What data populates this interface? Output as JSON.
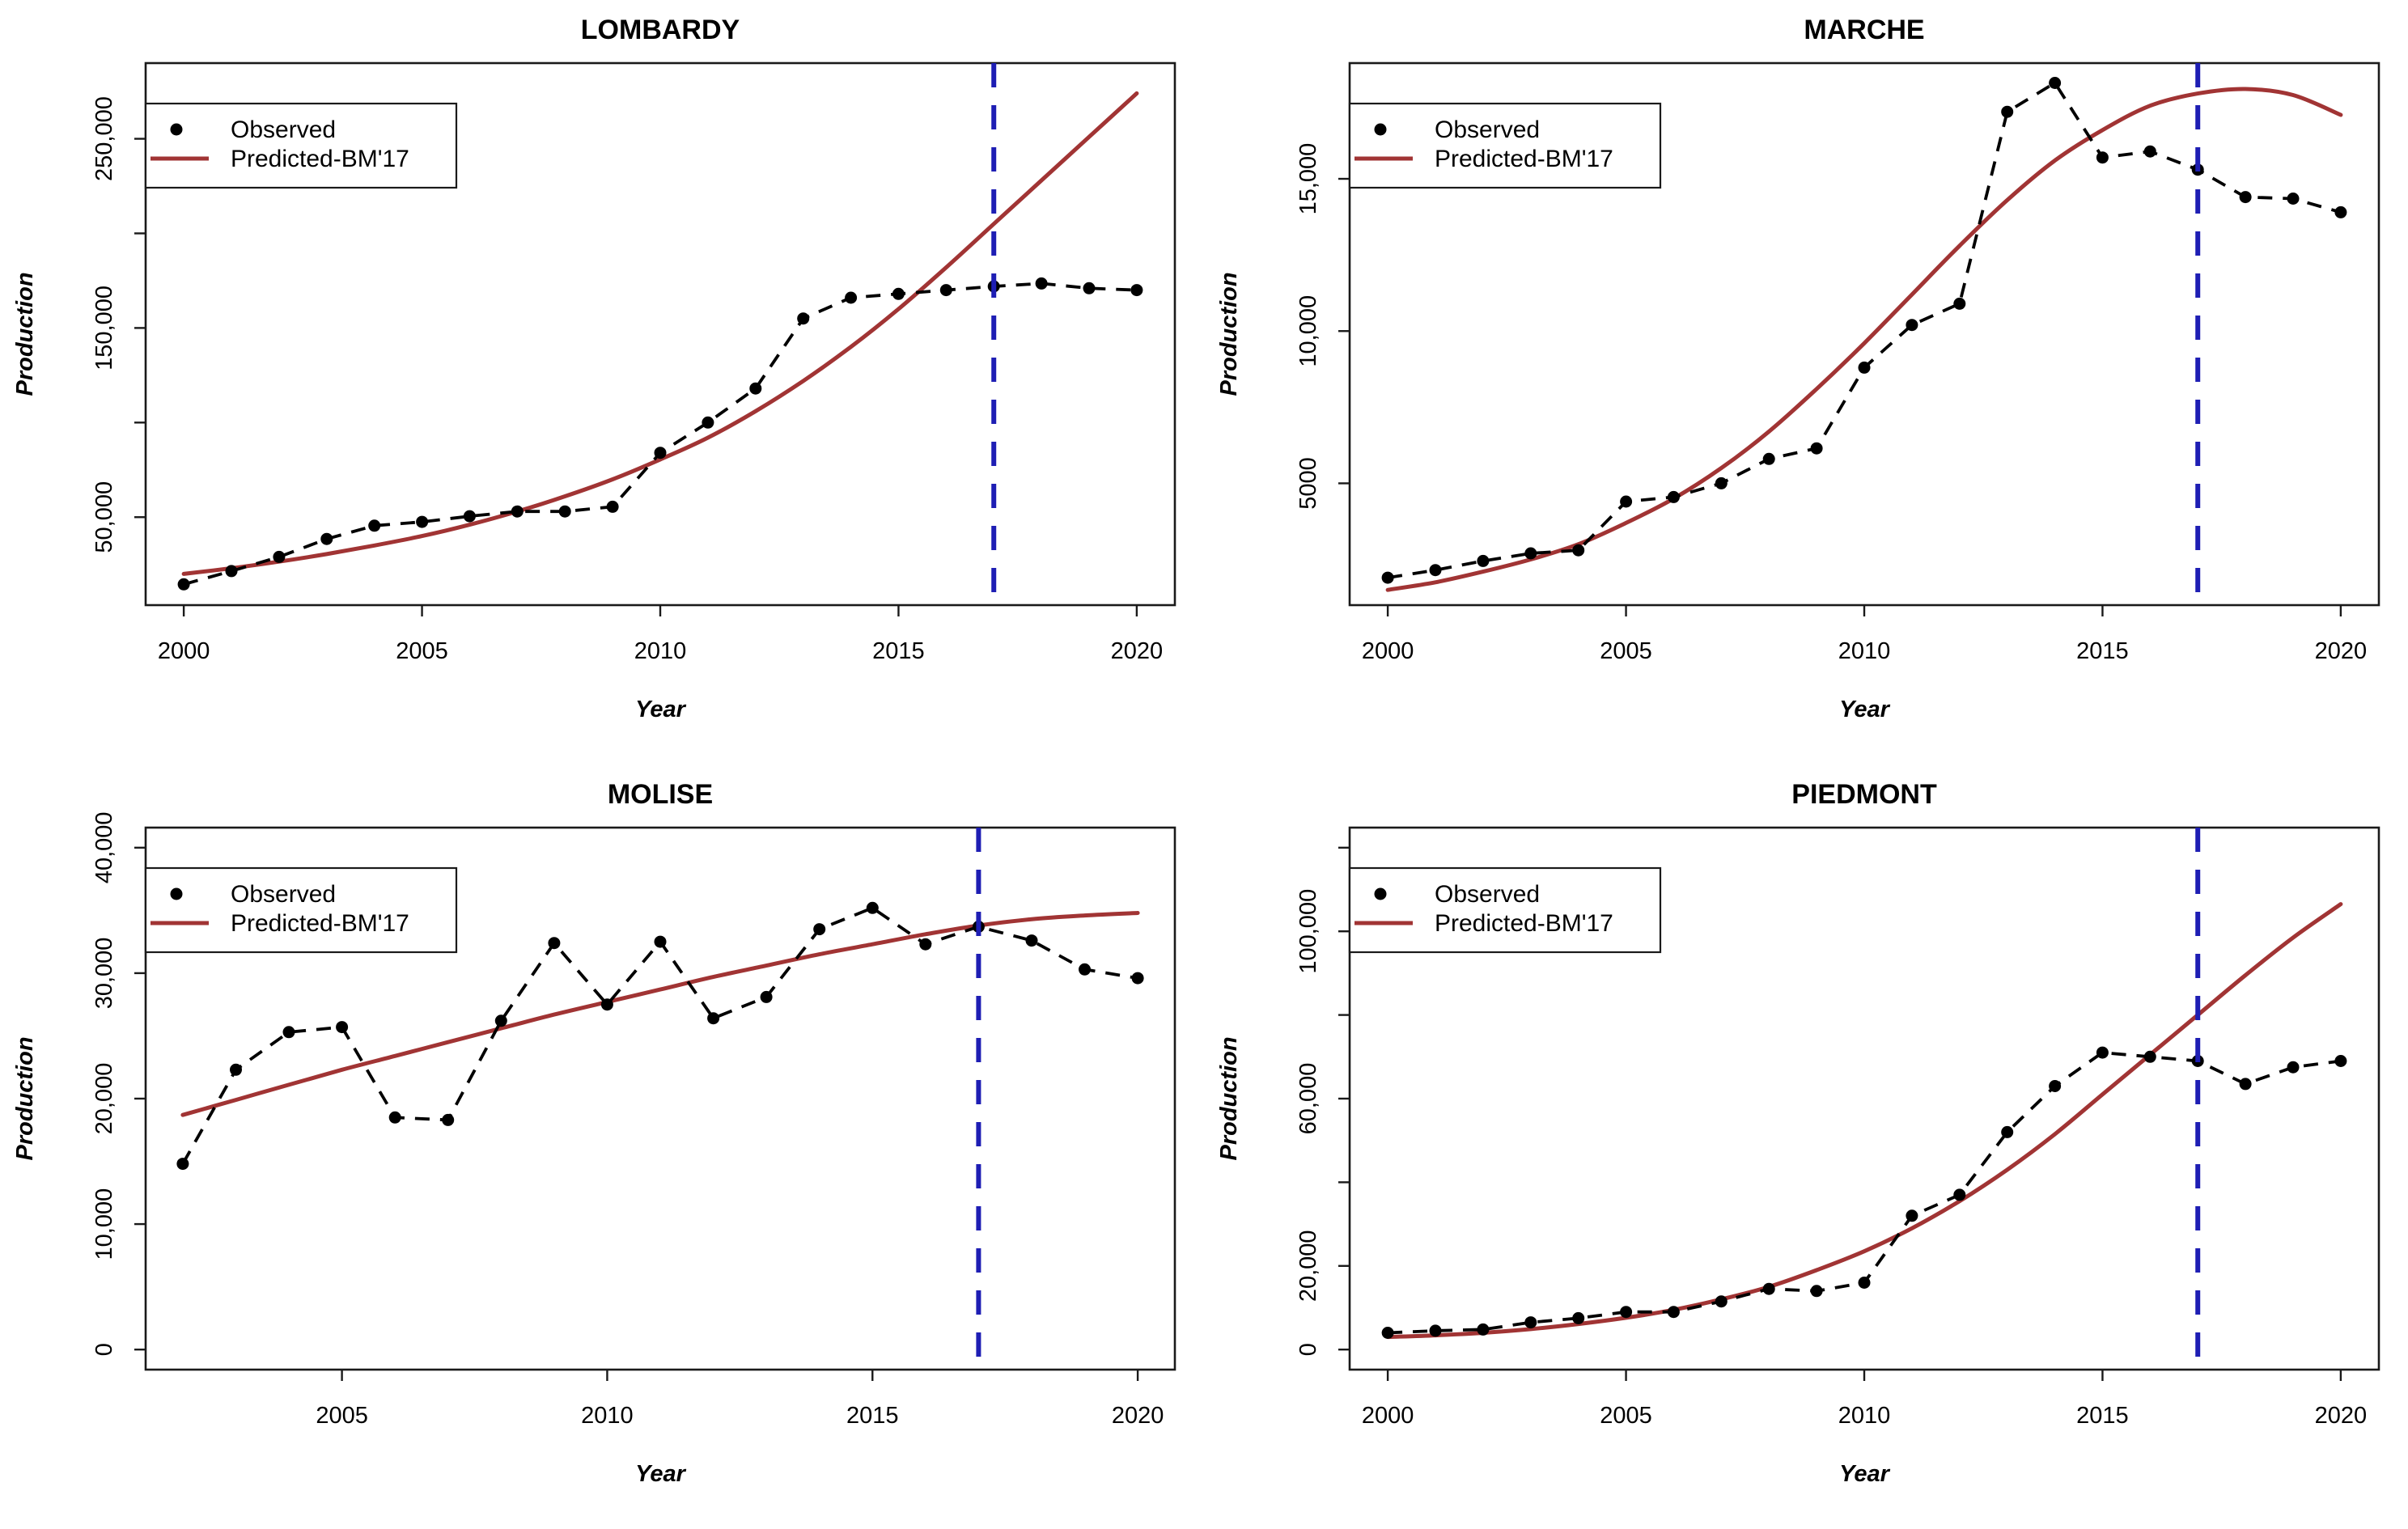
{
  "page": {
    "background": "#ffffff"
  },
  "legend": {
    "observed_label": "Observed",
    "predicted_label": "Predicted-BM'17"
  },
  "colors": {
    "observed": "#000000",
    "predicted": "#A13434",
    "vline": "#1E1EB4",
    "axis": "#1A1A1A",
    "background": "#ffffff"
  },
  "chart_data": [
    {
      "type": "line",
      "title": "LOMBARDY",
      "xlabel": "Year",
      "ylabel": "Production",
      "x": [
        2000,
        2001,
        2002,
        2003,
        2004,
        2005,
        2006,
        2007,
        2008,
        2009,
        2010,
        2011,
        2012,
        2013,
        2014,
        2015,
        2016,
        2017,
        2018,
        2019,
        2020
      ],
      "series": [
        {
          "name": "Observed",
          "style": "points-dashed",
          "values": [
            14500,
            21500,
            29000,
            38500,
            45500,
            47500,
            50500,
            53000,
            53000,
            55500,
            84000,
            100000,
            118000,
            155000,
            166000,
            168000,
            170000,
            172000,
            173500,
            171000,
            170000
          ]
        },
        {
          "name": "Predicted-BM'17",
          "style": "solid-curve",
          "values": [
            20000,
            23000,
            26500,
            30500,
            35000,
            40000,
            46000,
            53000,
            61000,
            70000,
            80500,
            92000,
            106000,
            122000,
            140000,
            160000,
            182000,
            205000,
            228000,
            251000,
            274000
          ]
        }
      ],
      "vline_x": 2017,
      "xlim": [
        1999.2,
        2020.8
      ],
      "ylim": [
        3500,
        290000
      ],
      "xticks": [
        2000,
        2005,
        2010,
        2015,
        2020
      ],
      "yticks": [
        {
          "v": 50000,
          "label": "50,000"
        },
        {
          "v": 100000,
          "label": ""
        },
        {
          "v": 150000,
          "label": "150,000"
        },
        {
          "v": 200000,
          "label": ""
        },
        {
          "v": 250000,
          "label": "250,000"
        }
      ],
      "grid": false,
      "legend_position": "topleft"
    },
    {
      "type": "line",
      "title": "MARCHE",
      "xlabel": "Year",
      "ylabel": "Production",
      "x": [
        2000,
        2001,
        2002,
        2003,
        2004,
        2005,
        2006,
        2007,
        2008,
        2009,
        2010,
        2011,
        2012,
        2013,
        2014,
        2015,
        2016,
        2017,
        2018,
        2019,
        2020
      ],
      "series": [
        {
          "name": "Observed",
          "style": "points-dashed",
          "values": [
            1900,
            2150,
            2450,
            2700,
            2800,
            4400,
            4550,
            5000,
            5800,
            6150,
            8800,
            10200,
            10900,
            17200,
            18150,
            15700,
            15900,
            15300,
            14400,
            14350,
            13900
          ]
        },
        {
          "name": "Predicted-BM'17",
          "style": "solid-curve",
          "values": [
            1500,
            1750,
            2100,
            2500,
            3000,
            3700,
            4500,
            5500,
            6700,
            8100,
            9600,
            11200,
            12800,
            14300,
            15600,
            16600,
            17400,
            17800,
            17950,
            17750,
            17100
          ]
        }
      ],
      "vline_x": 2017,
      "xlim": [
        1999.2,
        2020.8
      ],
      "ylim": [
        1000,
        18800
      ],
      "xticks": [
        2000,
        2005,
        2010,
        2015,
        2020
      ],
      "yticks": [
        {
          "v": 5000,
          "label": "5000"
        },
        {
          "v": 10000,
          "label": "10,000"
        },
        {
          "v": 15000,
          "label": "15,000"
        }
      ],
      "grid": false,
      "legend_position": "topleft"
    },
    {
      "type": "line",
      "title": "MOLISE",
      "xlabel": "Year",
      "ylabel": "Production",
      "x": [
        2002,
        2003,
        2004,
        2005,
        2006,
        2007,
        2008,
        2009,
        2010,
        2011,
        2012,
        2013,
        2014,
        2015,
        2016,
        2017,
        2018,
        2019,
        2020
      ],
      "series": [
        {
          "name": "Observed",
          "style": "points-dashed",
          "values": [
            14800,
            22300,
            25300,
            25700,
            18500,
            18300,
            26200,
            32400,
            27500,
            32500,
            26400,
            28100,
            33500,
            35200,
            32300,
            33700,
            32600,
            30300,
            29600
          ]
        },
        {
          "name": "Predicted-BM'17",
          "style": "solid-curve",
          "values": [
            18700,
            19900,
            21100,
            22300,
            23400,
            24500,
            25600,
            26700,
            27700,
            28700,
            29700,
            30600,
            31500,
            32300,
            33100,
            33800,
            34300,
            34600,
            34800
          ]
        }
      ],
      "vline_x": 2017,
      "xlim": [
        2001.3,
        2020.7
      ],
      "ylim": [
        -1600,
        41600
      ],
      "xticks": [
        2005,
        2010,
        2015,
        2020
      ],
      "yticks": [
        {
          "v": 0,
          "label": "0"
        },
        {
          "v": 10000,
          "label": "10,000"
        },
        {
          "v": 20000,
          "label": "20,000"
        },
        {
          "v": 30000,
          "label": "30,000"
        },
        {
          "v": 40000,
          "label": "40,000"
        }
      ],
      "grid": false,
      "legend_position": "topleft"
    },
    {
      "type": "line",
      "title": "PIEDMONT",
      "xlabel": "Year",
      "ylabel": "Production",
      "x": [
        2000,
        2001,
        2002,
        2003,
        2004,
        2005,
        2006,
        2007,
        2008,
        2009,
        2010,
        2011,
        2012,
        2013,
        2014,
        2015,
        2016,
        2017,
        2018,
        2019,
        2020
      ],
      "series": [
        {
          "name": "Observed",
          "style": "points-dashed",
          "values": [
            4000,
            4500,
            4800,
            6500,
            7500,
            9000,
            9000,
            11500,
            14500,
            14000,
            16000,
            32000,
            37000,
            52000,
            63000,
            71000,
            70000,
            69000,
            63500,
            67500,
            69000
          ]
        },
        {
          "name": "Predicted-BM'17",
          "style": "solid-curve",
          "values": [
            3000,
            3400,
            4000,
            4900,
            6100,
            7600,
            9500,
            12000,
            15000,
            19000,
            23500,
            29000,
            35500,
            43000,
            51500,
            61000,
            70500,
            80000,
            89500,
            98500,
            106500
          ]
        }
      ],
      "vline_x": 2017,
      "xlim": [
        1999.2,
        2020.8
      ],
      "ylim": [
        -4800,
        124800
      ],
      "xticks": [
        2000,
        2005,
        2010,
        2015,
        2020
      ],
      "yticks": [
        {
          "v": 0,
          "label": "0"
        },
        {
          "v": 20000,
          "label": "20,000"
        },
        {
          "v": 40000,
          "label": ""
        },
        {
          "v": 60000,
          "label": "60,000"
        },
        {
          "v": 80000,
          "label": ""
        },
        {
          "v": 100000,
          "label": "100,000"
        },
        {
          "v": 120000,
          "label": ""
        }
      ],
      "grid": false,
      "legend_position": "topleft"
    }
  ]
}
